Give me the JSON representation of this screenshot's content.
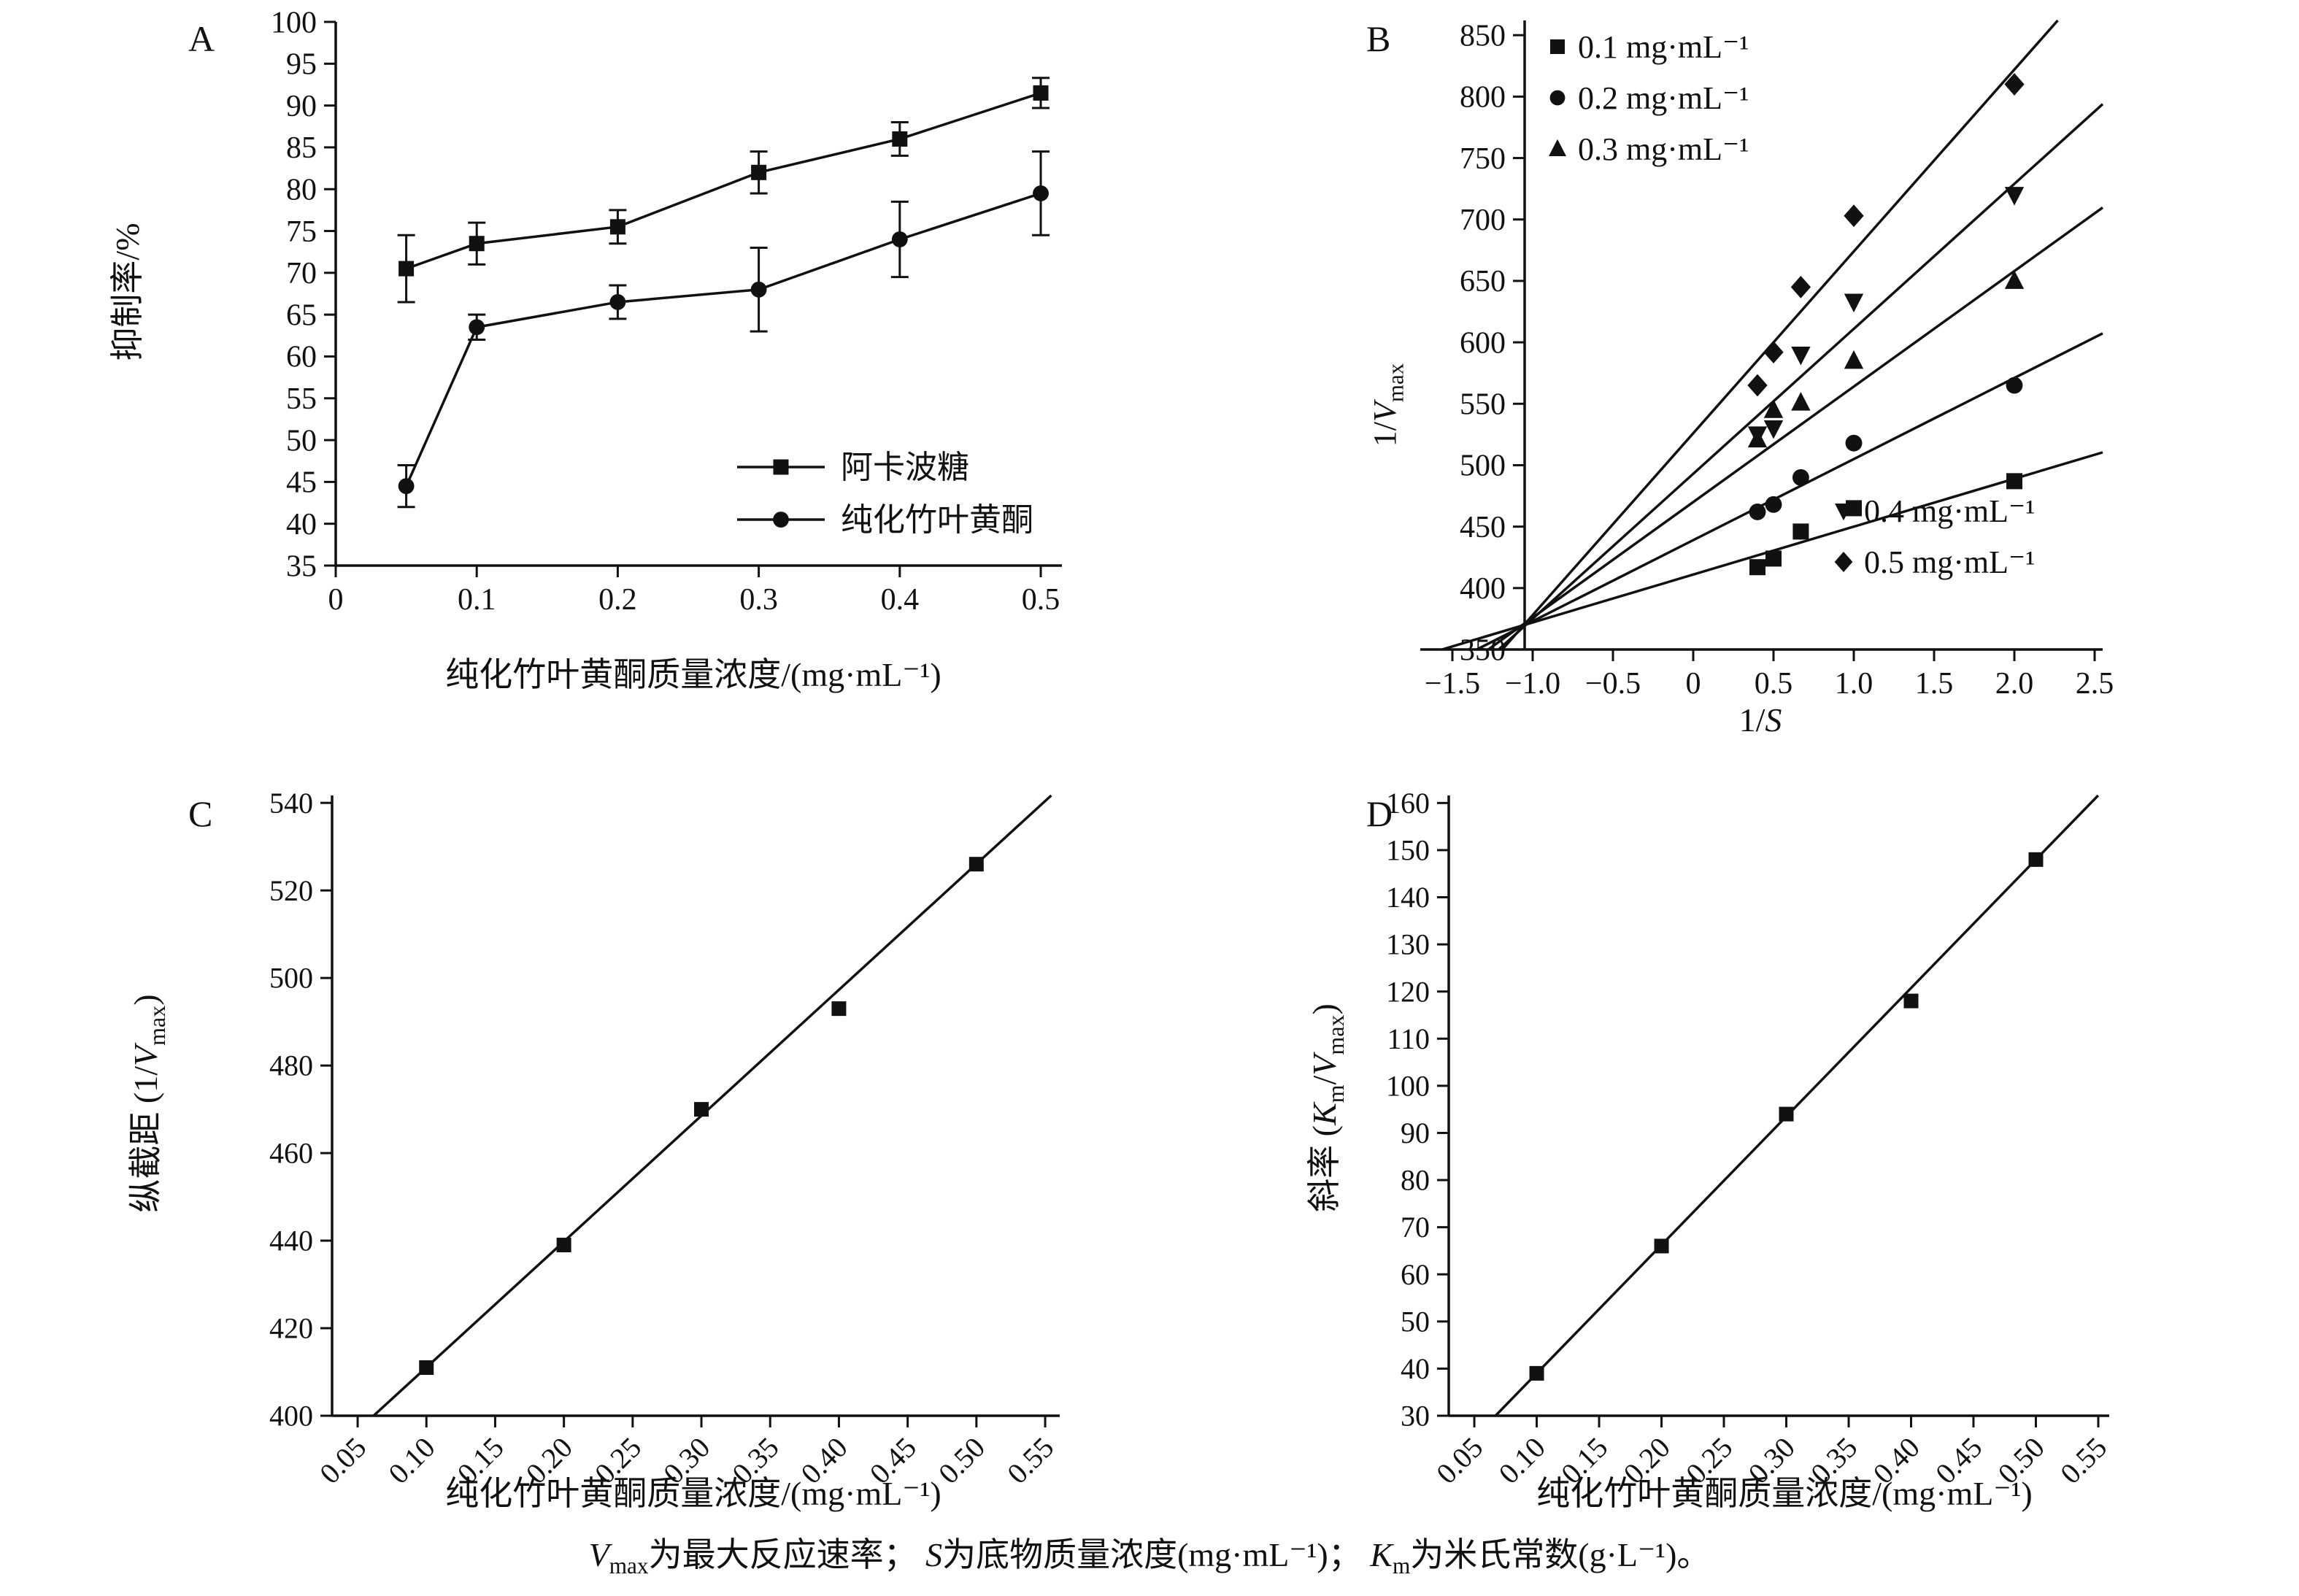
{
  "figure": {
    "caption_segments": [
      {
        "text": "V",
        "italic": true
      },
      {
        "text": "max",
        "sub": true
      },
      {
        "text": "为最大反应速率； "
      },
      {
        "text": "S",
        "italic": true
      },
      {
        "text": "为底物质量浓度(mg·mL⁻¹)； "
      },
      {
        "text": "K",
        "italic": true
      },
      {
        "text": "m",
        "sub": true
      },
      {
        "text": "为米氏常数(g·L⁻¹)。"
      }
    ]
  },
  "chart_data": [
    {
      "id": "A",
      "type": "errorbar-line",
      "panel_label": "A",
      "xlabel": "纯化竹叶黄酮质量浓度/(mg·mL⁻¹)",
      "ylabel": "抑制率/%",
      "xlim": [
        0,
        0.515
      ],
      "ylim": [
        35,
        100
      ],
      "xtick_vals": [
        0,
        0.1,
        0.2,
        0.3,
        0.4,
        0.5
      ],
      "xtick_labels": [
        "0",
        "0.1",
        "0.2",
        "0.3",
        "0.4",
        "0.5"
      ],
      "ytick_vals": [
        35,
        40,
        45,
        50,
        55,
        60,
        65,
        70,
        75,
        80,
        85,
        90,
        95,
        100
      ],
      "ytick_labels": [
        "35",
        "40",
        "45",
        "50",
        "55",
        "60",
        "65",
        "70",
        "75",
        "80",
        "85",
        "90",
        "95",
        "100"
      ],
      "series": [
        {
          "name": "阿卡波糖",
          "marker": "square",
          "x": [
            0.05,
            0.1,
            0.2,
            0.3,
            0.4,
            0.5
          ],
          "y": [
            70.5,
            73.5,
            75.5,
            82,
            86,
            91.5
          ],
          "yerr": [
            4,
            2.5,
            2,
            2.5,
            2,
            1.8
          ]
        },
        {
          "name": "纯化竹叶黄酮",
          "marker": "circle",
          "x": [
            0.05,
            0.1,
            0.2,
            0.3,
            0.4,
            0.5
          ],
          "y": [
            44.5,
            63.5,
            66.5,
            68,
            74,
            79.5
          ],
          "yerr": [
            2.5,
            1.5,
            2,
            5,
            4.5,
            5
          ]
        }
      ]
    },
    {
      "id": "B",
      "type": "scatter-fitlines",
      "panel_label": "B",
      "xlabel_segments": [
        {
          "text": "1/"
        },
        {
          "text": "S",
          "italic": true
        }
      ],
      "ylabel_segments": [
        {
          "text": "1/"
        },
        {
          "text": "V",
          "italic": true
        },
        {
          "text": "max",
          "sub": true
        }
      ],
      "xlim": [
        -1.7,
        2.55
      ],
      "ylim": [
        350,
        862
      ],
      "yaxis_at_x": -1.05,
      "xtick_vals": [
        -1.5,
        -1.0,
        -0.5,
        0,
        0.5,
        1.0,
        1.5,
        2.0,
        2.5
      ],
      "xtick_labels": [
        "−1.5",
        "−1.0",
        "−0.5",
        "0",
        "0.5",
        "1.0",
        "1.5",
        "2.0",
        "2.5"
      ],
      "ytick_vals": [
        350,
        400,
        450,
        500,
        550,
        600,
        650,
        700,
        750,
        800,
        850
      ],
      "ytick_labels": [
        "350",
        "400",
        "450",
        "500",
        "550",
        "600",
        "650",
        "700",
        "750",
        "800",
        "850"
      ],
      "series": [
        {
          "name": "0.1 mg·mL⁻¹",
          "marker": "square",
          "x": [
            0.4,
            0.5,
            0.67,
            1.0,
            2.0
          ],
          "y": [
            417,
            424,
            446,
            465,
            487
          ],
          "fit": {
            "intercept": 411,
            "slope": 39
          }
        },
        {
          "name": "0.2 mg·mL⁻¹",
          "marker": "circle",
          "x": [
            0.4,
            0.5,
            0.67,
            1.0,
            2.0
          ],
          "y": [
            462,
            468,
            490,
            518,
            565
          ],
          "fit": {
            "intercept": 439,
            "slope": 66
          }
        },
        {
          "name": "0.3 mg·mL⁻¹",
          "marker": "triangle-up",
          "x": [
            0.4,
            0.5,
            0.67,
            1.0,
            2.0
          ],
          "y": [
            521,
            545,
            551,
            585,
            650
          ],
          "fit": {
            "intercept": 470,
            "slope": 94
          }
        },
        {
          "name": "0.4 mg·mL⁻¹",
          "marker": "triangle-down",
          "x": [
            0.4,
            0.5,
            0.67,
            1.0,
            2.0
          ],
          "y": [
            525,
            530,
            590,
            633,
            720
          ],
          "fit": {
            "intercept": 493,
            "slope": 118
          }
        },
        {
          "name": "0.5 mg·mL⁻¹",
          "marker": "diamond",
          "x": [
            0.4,
            0.5,
            0.67,
            1.0,
            2.0
          ],
          "y": [
            565,
            592,
            645,
            703,
            810
          ],
          "fit": {
            "intercept": 526,
            "slope": 148
          }
        }
      ],
      "legend_groups": [
        {
          "anchor": "top-left",
          "entries": [
            0,
            1,
            2
          ]
        },
        {
          "anchor": "bottom-right",
          "entries": [
            3,
            4
          ]
        }
      ]
    },
    {
      "id": "C",
      "type": "scatter-fit",
      "panel_label": "C",
      "xlabel": "纯化竹叶黄酮质量浓度/(mg·mL⁻¹)",
      "ylabel_segments": [
        {
          "text": "纵截距 (1/"
        },
        {
          "text": "V",
          "italic": true
        },
        {
          "text": "max",
          "sub": true
        },
        {
          "text": ")"
        }
      ],
      "xlim": [
        0.0314,
        0.5606
      ],
      "ylim": [
        400,
        541.7
      ],
      "rotate_xticks": true,
      "xtick_vals": [
        0.05,
        0.1,
        0.15,
        0.2,
        0.25,
        0.3,
        0.35,
        0.4,
        0.45,
        0.5,
        0.55
      ],
      "xtick_labels": [
        "0.05",
        "0.10",
        "0.15",
        "0.20",
        "0.25",
        "0.30",
        "0.35",
        "0.40",
        "0.45",
        "0.50",
        "0.55"
      ],
      "ytick_vals": [
        400,
        420,
        440,
        460,
        480,
        500,
        520,
        540
      ],
      "ytick_labels": [
        "400",
        "420",
        "440",
        "460",
        "480",
        "500",
        "520",
        "540"
      ],
      "points": {
        "marker": "square",
        "x": [
          0.1,
          0.2,
          0.3,
          0.4,
          0.5
        ],
        "y": [
          411,
          439,
          470,
          493,
          526
        ]
      },
      "fit": {
        "intercept": 382.3,
        "slope": 287.5
      }
    },
    {
      "id": "D",
      "type": "scatter-fit",
      "panel_label": "D",
      "xlabel": "纯化竹叶黄酮质量浓度/(mg·mL⁻¹)",
      "ylabel_segments": [
        {
          "text": "斜率 ("
        },
        {
          "text": "K",
          "italic": true
        },
        {
          "text": "m",
          "sub": true
        },
        {
          "text": "/"
        },
        {
          "text": "V",
          "italic": true
        },
        {
          "text": "max",
          "sub": true
        },
        {
          "text": ")"
        }
      ],
      "xlim": [
        0.0295,
        0.5588
      ],
      "ylim": [
        30,
        161.6
      ],
      "rotate_xticks": true,
      "xtick_vals": [
        0.05,
        0.1,
        0.15,
        0.2,
        0.25,
        0.3,
        0.35,
        0.4,
        0.45,
        0.5,
        0.55
      ],
      "xtick_labels": [
        "0.05",
        "0.10",
        "0.15",
        "0.20",
        "0.25",
        "0.30",
        "0.35",
        "0.40",
        "0.45",
        "0.50",
        "0.55"
      ],
      "ytick_vals": [
        30,
        40,
        50,
        60,
        70,
        80,
        90,
        100,
        110,
        120,
        130,
        140,
        150,
        160
      ],
      "ytick_labels": [
        "30",
        "40",
        "50",
        "60",
        "70",
        "80",
        "90",
        "100",
        "110",
        "120",
        "130",
        "140",
        "150",
        "160"
      ],
      "points": {
        "marker": "square",
        "x": [
          0.1,
          0.2,
          0.3,
          0.4,
          0.5
        ],
        "y": [
          39,
          66,
          94,
          118,
          148
        ]
      },
      "fit": {
        "intercept": 11.75,
        "slope": 272.5
      }
    }
  ]
}
